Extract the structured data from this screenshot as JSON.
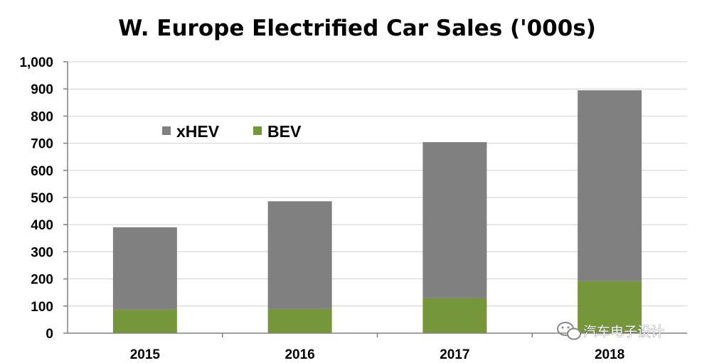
{
  "chart_data": {
    "type": "bar",
    "stacked": true,
    "title": "W. Europe Electrified Car Sales ('000s)",
    "categories": [
      "2015",
      "2016",
      "2017",
      "2018"
    ],
    "series": [
      {
        "name": "BEV",
        "color": "#76963a",
        "values": [
          88,
          90,
          131,
          192
        ]
      },
      {
        "name": "xHEV",
        "color": "#808080",
        "values": [
          302,
          396,
          573,
          703
        ]
      }
    ],
    "legend": {
      "placement": "top-left",
      "order": [
        "xHEV",
        "BEV"
      ]
    },
    "ylim": [
      0,
      1000
    ],
    "yticks": [
      0,
      100,
      200,
      300,
      400,
      500,
      600,
      700,
      800,
      900,
      1000
    ],
    "ytick_labels": [
      "0",
      "100",
      "200",
      "300",
      "400",
      "500",
      "600",
      "700",
      "800",
      "900",
      "1,000"
    ],
    "xlabel": "",
    "ylabel": "",
    "grid": true
  },
  "watermark": {
    "text": "汽车电子设计",
    "icon": "wechat-icon"
  }
}
